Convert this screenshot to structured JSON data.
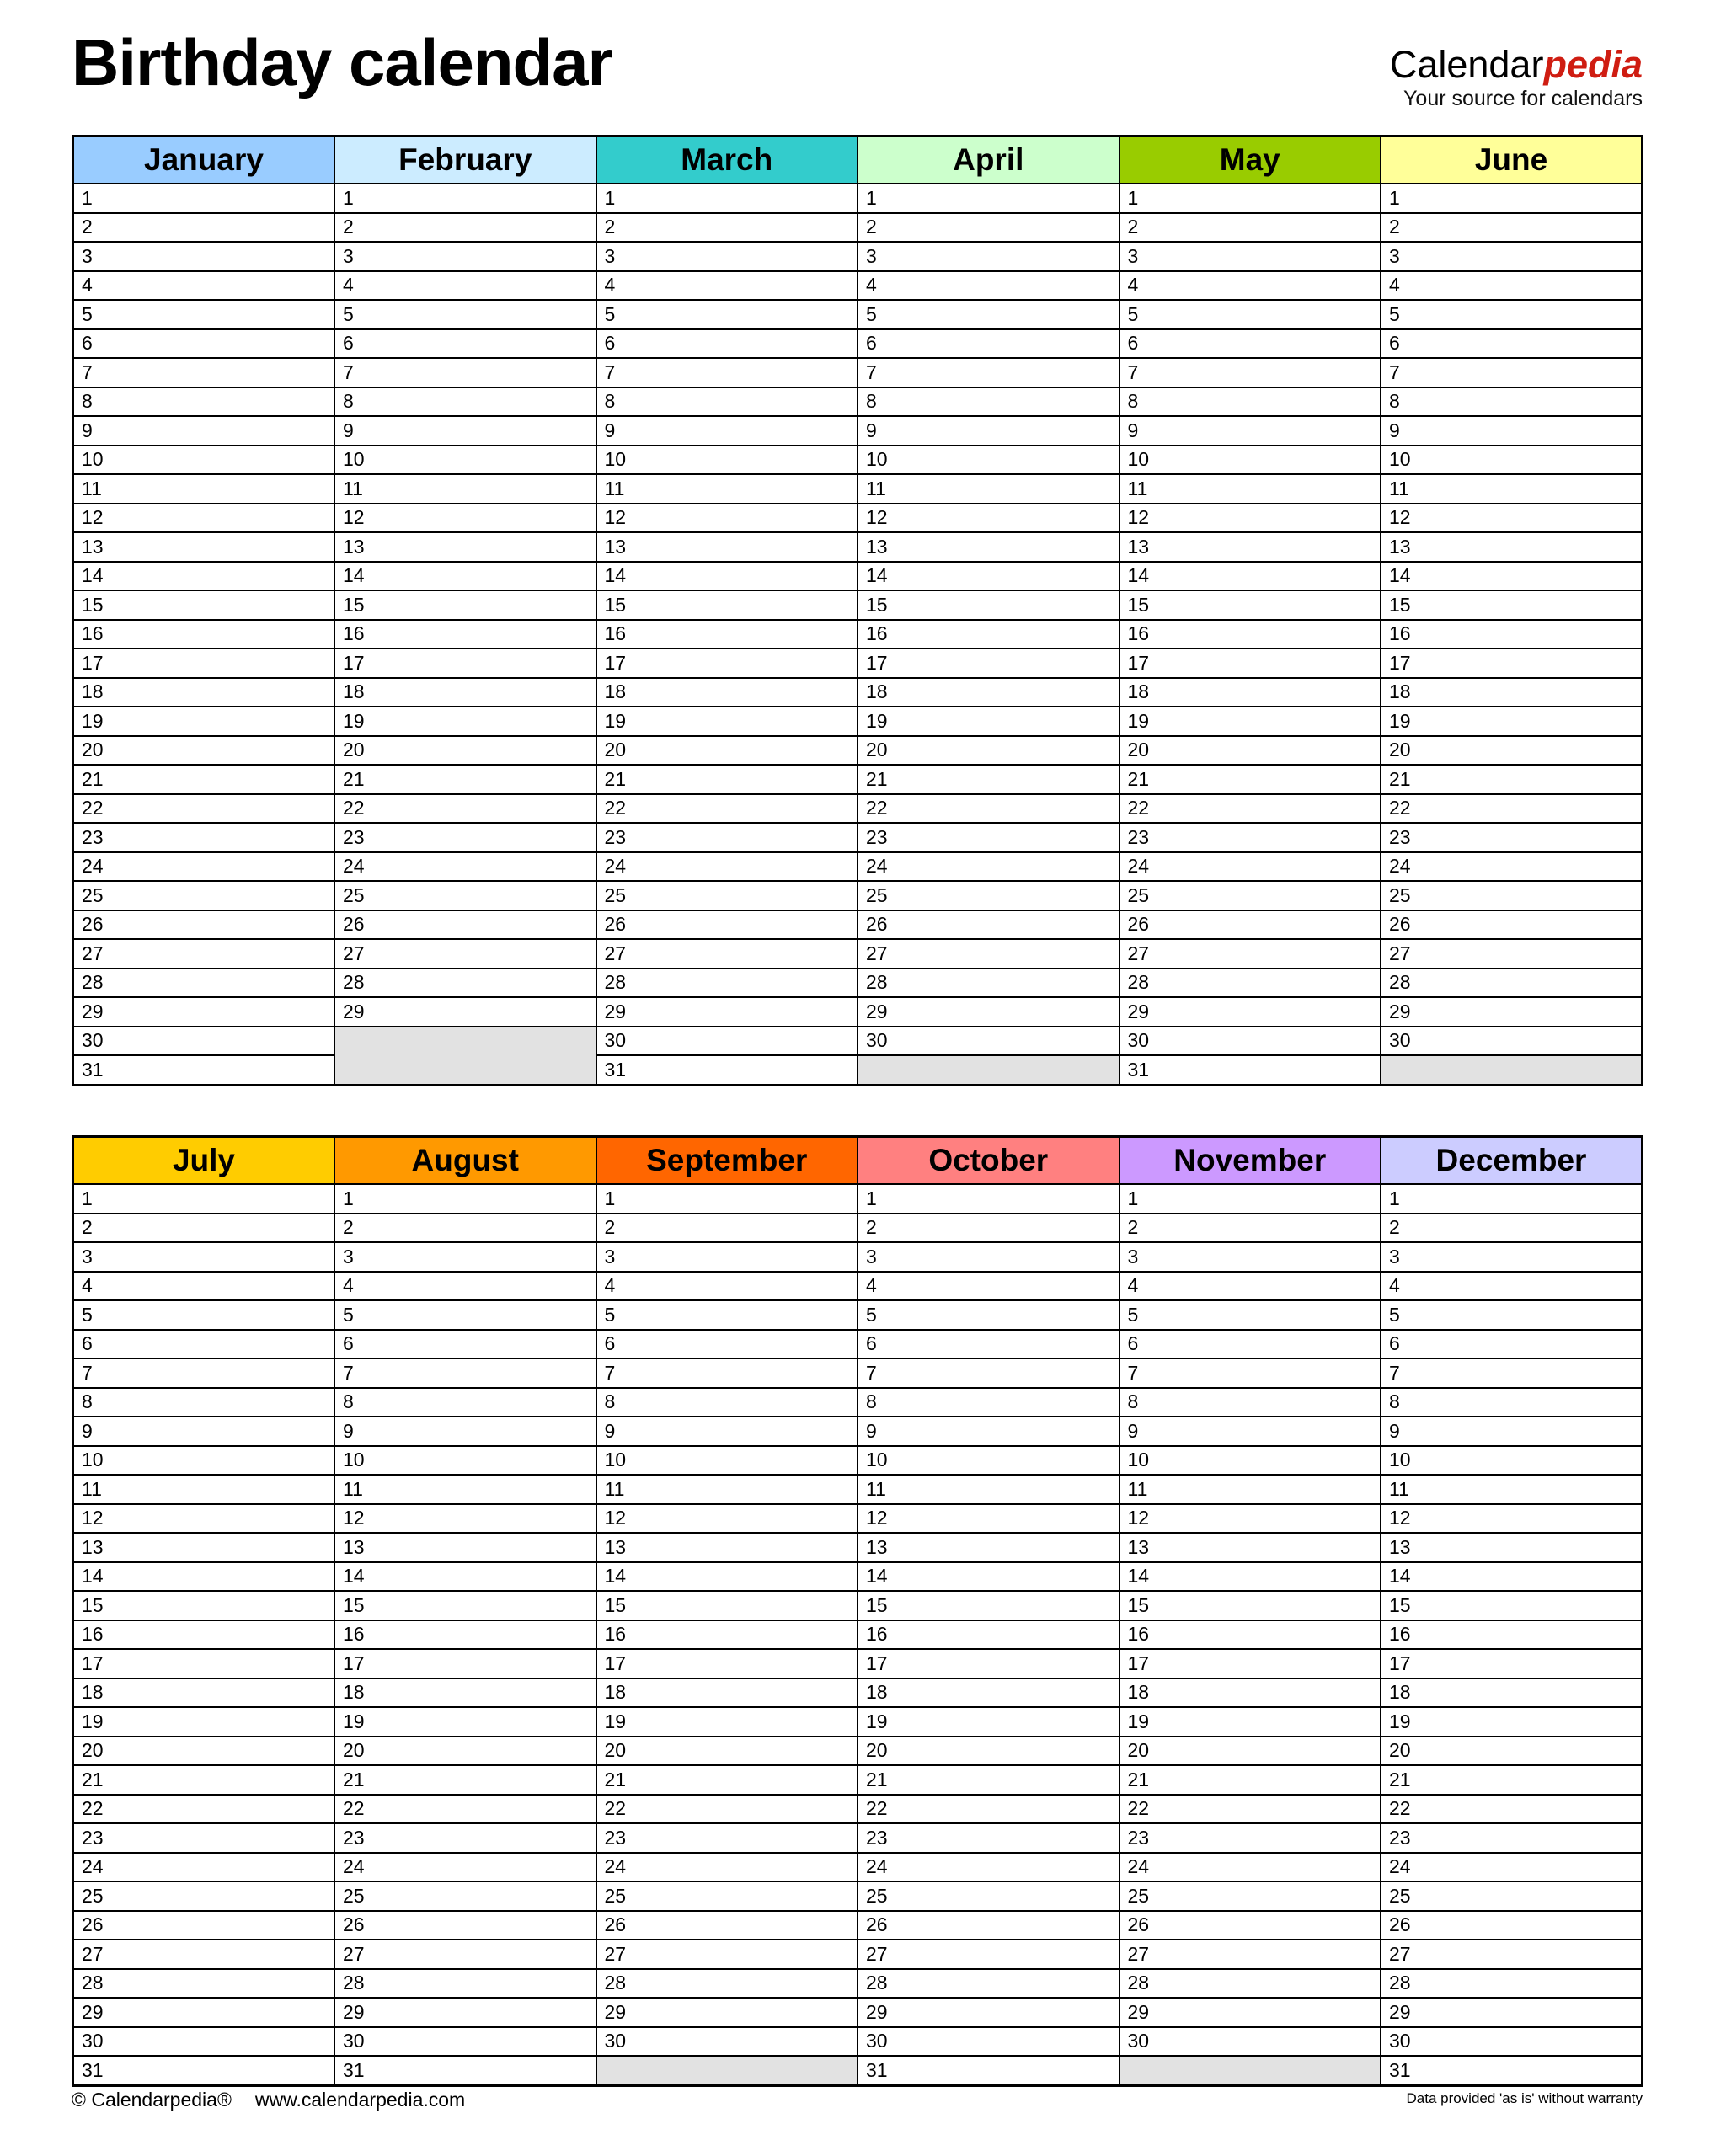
{
  "page": {
    "title": "Birthday calendar",
    "logo": {
      "part1": "Calendar",
      "part2": "pedia",
      "tagline": "Your source for calendars",
      "accent_color": "#CF1D12"
    },
    "footer": {
      "left_copyright": "© Calendarpedia®",
      "left_url": "www.calendarpedia.com",
      "right_disclaimer": "Data provided 'as is' without warranty"
    }
  },
  "calendar": {
    "row_count": 31,
    "first_day": 1,
    "empty_cell_color": "#E2E2E2",
    "border_color": "#000000",
    "tables": [
      {
        "name": "first-half",
        "months": [
          {
            "name": "January",
            "color": "#99CCFF",
            "days": 31
          },
          {
            "name": "February",
            "color": "#CCECFF",
            "days": 29
          },
          {
            "name": "March",
            "color": "#33CCCC",
            "days": 31
          },
          {
            "name": "April",
            "color": "#CCFFCC",
            "days": 30
          },
          {
            "name": "May",
            "color": "#99CC00",
            "days": 31
          },
          {
            "name": "June",
            "color": "#FFFF99",
            "days": 30
          }
        ]
      },
      {
        "name": "second-half",
        "months": [
          {
            "name": "July",
            "color": "#FFCC00",
            "days": 31
          },
          {
            "name": "August",
            "color": "#FF9900",
            "days": 31
          },
          {
            "name": "September",
            "color": "#FF6600",
            "days": 30
          },
          {
            "name": "October",
            "color": "#FF8080",
            "days": 31
          },
          {
            "name": "November",
            "color": "#CC99FF",
            "days": 30
          },
          {
            "name": "December",
            "color": "#CCCCFF",
            "days": 31
          }
        ]
      }
    ]
  }
}
